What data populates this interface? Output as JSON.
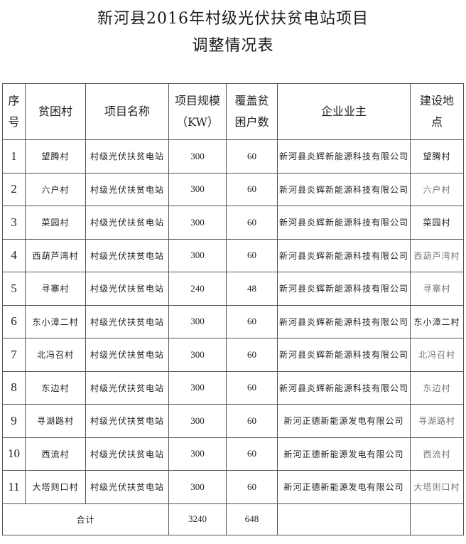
{
  "title_line1": "新河县2016年村级光伏扶贫电站项目",
  "title_line2": "调整情况表",
  "headers": {
    "index": [
      "序",
      "号"
    ],
    "village": "贫困村",
    "project_name": "项目名称",
    "scale": [
      "项目规模",
      "（KW）"
    ],
    "households": [
      "覆盖贫",
      "困户数"
    ],
    "owner": "企业业主",
    "location": [
      "建设地",
      "点"
    ]
  },
  "rows": [
    {
      "index": "1",
      "village": "望腾村",
      "project": "村级光伏扶贫电站",
      "scale": "300",
      "households": "60",
      "owner": "新河县炎辉新能源科技有限公司",
      "location": "望腾村",
      "location_gray": false
    },
    {
      "index": "2",
      "village": "六户村",
      "project": "村级光伏扶贫电站",
      "scale": "300",
      "households": "60",
      "owner": "新河县炎辉新能源科技有限公司",
      "location": "六户村",
      "location_gray": true
    },
    {
      "index": "3",
      "village": "菜园村",
      "project": "村级光伏扶贫电站",
      "scale": "300",
      "households": "60",
      "owner": "新河县炎辉新能源科技有限公司",
      "location": "菜园村",
      "location_gray": false
    },
    {
      "index": "4",
      "village": "西葫芦湾村",
      "project": "村级光伏扶贫电站",
      "scale": "300",
      "households": "60",
      "owner": "新河县炎辉新能源科技有限公司",
      "location": "西葫芦湾村",
      "location_gray": true
    },
    {
      "index": "5",
      "village": "寻寨村",
      "project": "村级光伏扶贫电站",
      "scale": "240",
      "households": "48",
      "owner": "新河县炎辉新能源科技有限公司",
      "location": "寻寨村",
      "location_gray": true
    },
    {
      "index": "6",
      "village": "东小漳二村",
      "project": "村级光伏扶贫电站",
      "scale": "300",
      "households": "60",
      "owner": "新河县炎辉新能源科技有限公司",
      "location": "东小漳二村",
      "location_gray": false
    },
    {
      "index": "7",
      "village": "北冯召村",
      "project": "村级光伏扶贫电站",
      "scale": "300",
      "households": "60",
      "owner": "新河县炎辉新能源科技有限公司",
      "location": "北冯召村",
      "location_gray": true
    },
    {
      "index": "8",
      "village": "东边村",
      "project": "村级光伏扶贫电站",
      "scale": "300",
      "households": "60",
      "owner": "新河县炎辉新能源科技有限公司",
      "location": "东边村",
      "location_gray": true
    },
    {
      "index": "9",
      "village": "寻湖路村",
      "project": "村级光伏扶贫电站",
      "scale": "300",
      "households": "60",
      "owner": "新河正德新能源发电有限公司",
      "location": "寻湖路村",
      "location_gray": true
    },
    {
      "index": "10",
      "village": "西流村",
      "project": "村级光伏扶贫电站",
      "scale": "300",
      "households": "60",
      "owner": "新河正德新能源发电有限公司",
      "location": "西流村",
      "location_gray": true
    },
    {
      "index": "11",
      "village": "大塔则口村",
      "project": "村级光伏扶贫电站",
      "scale": "300",
      "households": "60",
      "owner": "新河正德新能源发电有限公司",
      "location": "大塔则口村",
      "location_gray": true
    }
  ],
  "total": {
    "label": "合计",
    "scale": "3240",
    "households": "648"
  }
}
